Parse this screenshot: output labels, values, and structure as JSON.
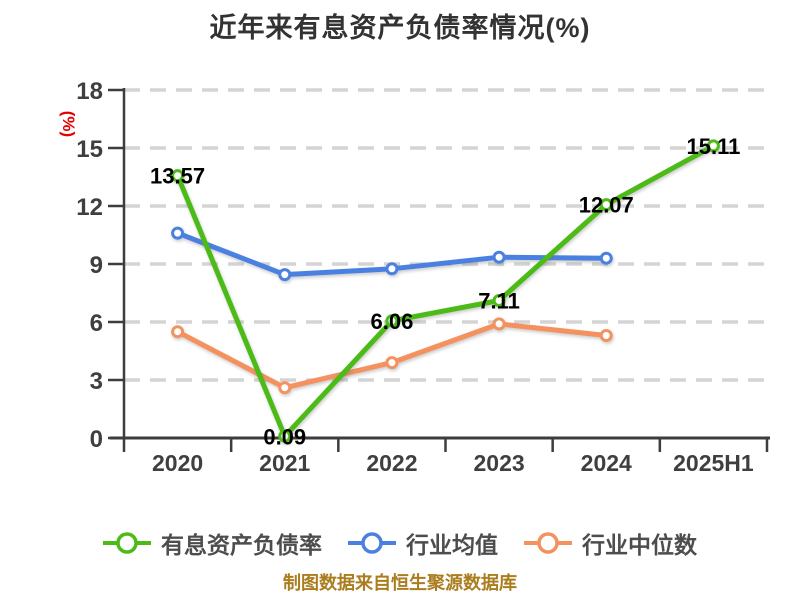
{
  "title": "近年来有息资产负债率情况(%)",
  "footer": "制图数据来自恒生聚源数据库",
  "colors": {
    "title": "#333333",
    "axis": "#3d3d3d",
    "grid": "#d4d4d4",
    "tick_label": "#3f3f3f",
    "data_label": "#000000",
    "unit_label": "#e60000",
    "legend_text": "#4d4d4d",
    "footer_text": "#aa7d1e"
  },
  "chart_data": {
    "type": "line",
    "title": "近年来有息资产负债率情况(%)",
    "categories": [
      "2020",
      "2021",
      "2022",
      "2023",
      "2024",
      "2025H1"
    ],
    "series": [
      {
        "name": "有息资产负债率",
        "color": "#4cbb17",
        "values": [
          13.57,
          0.09,
          6.06,
          7.11,
          12.07,
          15.11
        ],
        "show_labels": true
      },
      {
        "name": "行业均值",
        "color": "#4a80e1",
        "values": [
          10.6,
          8.45,
          8.75,
          9.35,
          9.3,
          null
        ],
        "show_labels": false
      },
      {
        "name": "行业中位数",
        "color": "#f4925f",
        "values": [
          5.5,
          2.6,
          3.9,
          5.9,
          5.3,
          null
        ],
        "show_labels": false
      }
    ],
    "ylabel": "(%)",
    "xlabel": "",
    "ylim": [
      0,
      18
    ],
    "yticks": [
      0,
      3,
      6,
      9,
      12,
      15,
      18
    ],
    "grid": "dashed horizontal",
    "legend_position": "bottom"
  }
}
